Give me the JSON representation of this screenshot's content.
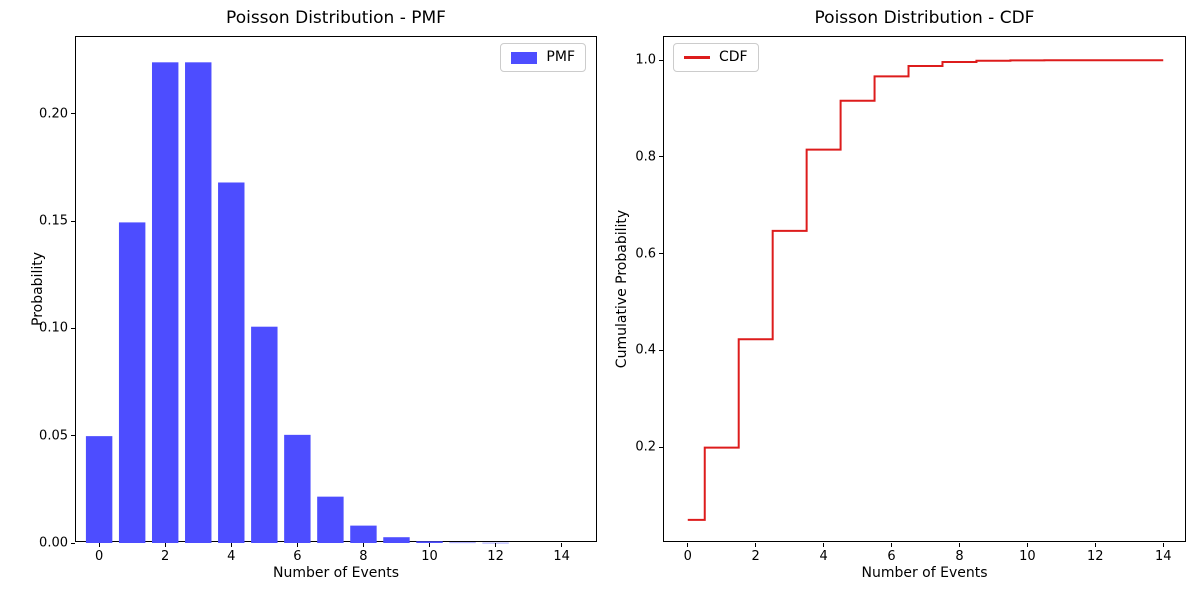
{
  "figure": {
    "background": "#ffffff",
    "spine_color": "#000000"
  },
  "chart_data": [
    {
      "type": "bar",
      "title": "Poisson Distribution - PMF",
      "xlabel": "Number of Events",
      "ylabel": "Probability",
      "legend": {
        "label": "PMF",
        "position": "upper right"
      },
      "color": "#4d4dff",
      "bar_width": 0.8,
      "categories": [
        0,
        1,
        2,
        3,
        4,
        5,
        6,
        7,
        8,
        9,
        10,
        11,
        12,
        13,
        14
      ],
      "values": [
        0.0498,
        0.1494,
        0.224,
        0.224,
        0.168,
        0.1008,
        0.0504,
        0.0216,
        0.0081,
        0.0027,
        0.0008,
        0.0002,
        0.0001,
        0.0,
        0.0
      ],
      "xlim": [
        -0.7,
        15.1
      ],
      "ylim": [
        0,
        0.2358
      ],
      "grid": false,
      "xticks": {
        "values": [
          0,
          2,
          4,
          6,
          8,
          10,
          12,
          14
        ],
        "labels": [
          "0",
          "2",
          "4",
          "6",
          "8",
          "10",
          "12",
          "14"
        ]
      },
      "yticks": {
        "values": [
          0,
          0.05,
          0.1,
          0.15,
          0.2
        ],
        "labels": [
          "0.00",
          "0.05",
          "0.10",
          "0.15",
          "0.20"
        ]
      }
    },
    {
      "type": "line",
      "step": "mid",
      "title": "Poisson Distribution - CDF",
      "xlabel": "Number of Events",
      "ylabel": "Cumulative Probability",
      "legend": {
        "label": "CDF",
        "position": "upper left"
      },
      "color": "#dd1c1c",
      "line_width": 2,
      "x": [
        0,
        1,
        2,
        3,
        4,
        5,
        6,
        7,
        8,
        9,
        10,
        11,
        12,
        13,
        14
      ],
      "values": [
        0.0498,
        0.1991,
        0.4232,
        0.6472,
        0.8153,
        0.9161,
        0.9665,
        0.9881,
        0.9962,
        0.9989,
        0.9997,
        0.9999,
        1.0,
        1.0,
        1.0
      ],
      "xlim": [
        -0.7,
        14.7
      ],
      "ylim": [
        0.002,
        1.048
      ],
      "grid": false,
      "xticks": {
        "values": [
          0,
          2,
          4,
          6,
          8,
          10,
          12,
          14
        ],
        "labels": [
          "0",
          "2",
          "4",
          "6",
          "8",
          "10",
          "12",
          "14"
        ]
      },
      "yticks": {
        "values": [
          0.2,
          0.4,
          0.6,
          0.8,
          1.0
        ],
        "labels": [
          "0.2",
          "0.4",
          "0.6",
          "0.8",
          "1.0"
        ]
      }
    }
  ]
}
